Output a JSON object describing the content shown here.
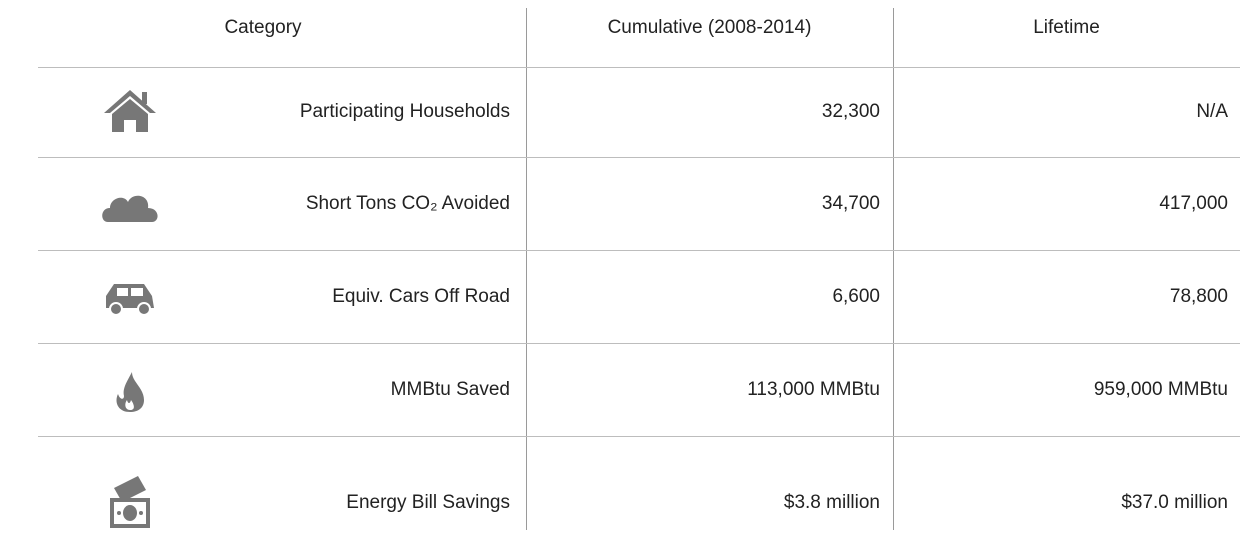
{
  "table": {
    "headers": [
      "Category",
      "Cumulative (2008-2014)",
      "Lifetime"
    ],
    "rows": [
      [
        "Participating Households",
        "32,300",
        "N/A"
      ],
      [
        "Short Tons CO₂ Avoided",
        "34,700",
        "417,000"
      ],
      [
        "Equiv. Cars Off Road",
        "6,600",
        "78,800"
      ],
      [
        "MMBtu Saved",
        "113,000 MMBtu",
        "959,000 MMBtu"
      ],
      [
        "Energy Bill Savings",
        "$3.8 million",
        "$37.0 million"
      ]
    ]
  }
}
